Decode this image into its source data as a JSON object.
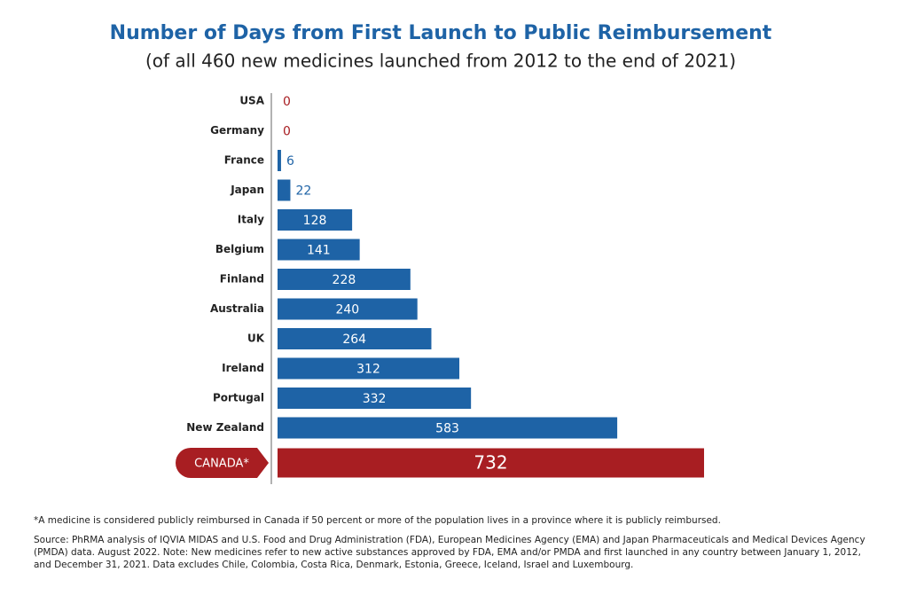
{
  "chart_data": {
    "type": "bar",
    "orientation": "horizontal",
    "title": "Number of Days from First Launch to Public Reimbursement",
    "subtitle": "(of all 460 new medicines launched from 2012 to the end of 2021)",
    "categories": [
      "USA",
      "Germany",
      "France",
      "Japan",
      "Italy",
      "Belgium",
      "Finland",
      "Australia",
      "UK",
      "Ireland",
      "Portugal",
      "New Zealand",
      "CANADA*"
    ],
    "values": [
      0,
      0,
      6,
      22,
      128,
      141,
      228,
      240,
      264,
      312,
      332,
      583,
      732
    ],
    "colors": [
      "#1e63a6",
      "#1e63a6",
      "#1e63a6",
      "#1e63a6",
      "#1e63a6",
      "#1e63a6",
      "#1e63a6",
      "#1e63a6",
      "#1e63a6",
      "#1e63a6",
      "#1e63a6",
      "#1e63a6",
      "#a81e22"
    ],
    "zero_label_color": "#a81e22",
    "footnote": "*A medicine is considered publicly reimbursed in Canada if 50 percent or more of the population lives in a province where it is publicly reimbursed.",
    "source": "Source: PhRMA analysis of IQVIA MIDAS and U.S. Food and Drug Administration (FDA), European Medicines Agency (EMA) and Japan Pharmaceuticals and Medical Devices Agency (PMDA) data. August 2022. Note: New medicines refer to new active substances approved by FDA, EMA and/or PMDA and first launched in any country between January 1, 2012, and December 31, 2021. Data excludes Chile, Colombia, Costa Rica, Denmark, Estonia, Greece, Iceland, Israel and Luxembourg."
  }
}
